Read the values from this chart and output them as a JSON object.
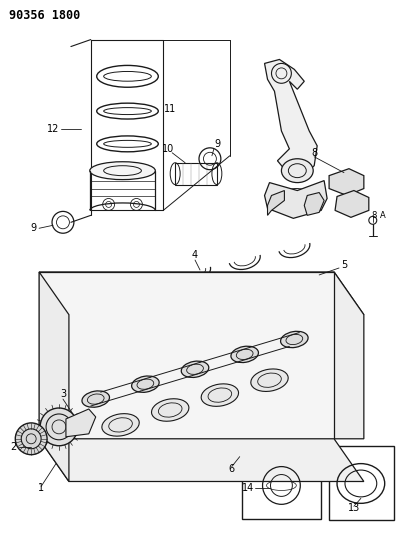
{
  "title": "90356 1800",
  "bg_color": "#ffffff",
  "line_color": "#1a1a1a",
  "fig_width": 3.99,
  "fig_height": 5.33,
  "dpi": 100
}
